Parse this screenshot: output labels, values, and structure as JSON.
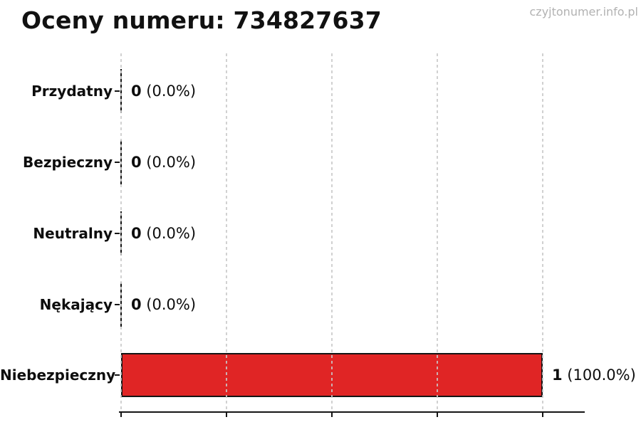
{
  "page": {
    "title": "Oceny numeru: 734827637",
    "watermark": "czyjtonumer.info.pl"
  },
  "colors": {
    "bar_fill_danger": "#e02525",
    "bar_edge": "#151515",
    "grid": "#cccccc",
    "axis": "#151515",
    "title_text": "#111111",
    "label_text": "#0d0d0d",
    "watermark_text": "#b2b2b2",
    "background": "#ffffff"
  },
  "chart_data": {
    "type": "bar",
    "orientation": "horizontal",
    "title": "Oceny numeru: 734827637",
    "categories": [
      "Przydatny",
      "Bezpieczny",
      "Neutralny",
      "Nękający",
      "Niebezpieczny"
    ],
    "values": [
      0,
      0,
      0,
      0,
      1
    ],
    "value_labels": [
      {
        "count": "0",
        "pct": "(0.0%)"
      },
      {
        "count": "0",
        "pct": "(0.0%)"
      },
      {
        "count": "0",
        "pct": "(0.0%)"
      },
      {
        "count": "0",
        "pct": "(0.0%)"
      },
      {
        "count": "1",
        "pct": "(100.0%)"
      }
    ],
    "bar_fills": [
      "none",
      "none",
      "none",
      "none",
      "#e02525"
    ],
    "xlabel": "",
    "ylabel": "",
    "xlim": [
      0,
      1.1
    ],
    "xticks": [
      0,
      0.25,
      0.5,
      0.75,
      1.0
    ],
    "xtick_labels_visible": false,
    "grid": "vertical-dashed",
    "legend": "none"
  }
}
